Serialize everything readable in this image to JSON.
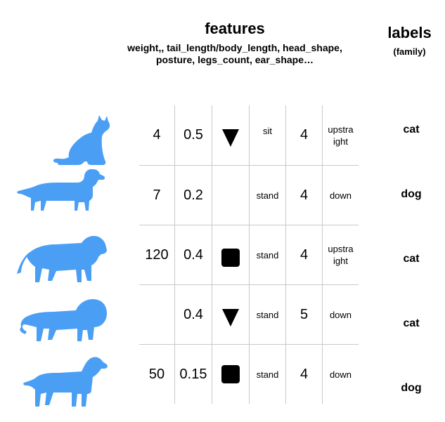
{
  "header": {
    "features_title": "features",
    "features_subtitle_line1": "weight,, tail_length/body_length, head_shape,",
    "features_subtitle_line2": "posture, legs_count, ear_shape…",
    "labels_title": "labels",
    "labels_subtitle": "(family)"
  },
  "colors": {
    "silhouette": "#4a9ff5",
    "grid": "#c9c9c9"
  },
  "rows": [
    {
      "animal_icon": "sitting-cat-icon",
      "weight": "4",
      "tail_ratio": "0.5",
      "head_shape": "triangle",
      "posture": "sit",
      "legs": "4",
      "ear_line1": "upstra",
      "ear_line2": "ight",
      "label": "cat"
    },
    {
      "animal_icon": "dachshund-icon",
      "weight": "7",
      "tail_ratio": "0.2",
      "head_shape": "",
      "posture": "stand",
      "legs": "4",
      "ear_line1": "down",
      "ear_line2": "",
      "label": "dog"
    },
    {
      "animal_icon": "tiger-icon",
      "weight": "120",
      "tail_ratio": "0.4",
      "head_shape": "square",
      "posture": "stand",
      "legs": "4",
      "ear_line1": "upstra",
      "ear_line2": "ight",
      "label": "cat"
    },
    {
      "animal_icon": "lion-icon",
      "weight": "",
      "tail_ratio": "0.4",
      "head_shape": "triangle",
      "posture": "stand",
      "legs": "5",
      "ear_line1": "down",
      "ear_line2": "",
      "label": "cat"
    },
    {
      "animal_icon": "large-dog-icon",
      "weight": "50",
      "tail_ratio": "0.15",
      "head_shape": "square",
      "posture": "stand",
      "legs": "4",
      "ear_line1": "down",
      "ear_line2": "",
      "label": "dog"
    }
  ]
}
